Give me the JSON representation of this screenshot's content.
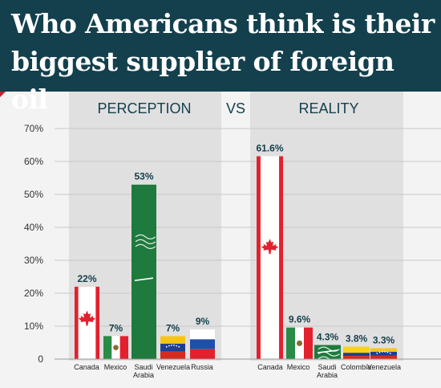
{
  "title": "Who Americans think is their biggest supplier of foreign oil",
  "chart_data": {
    "type": "bar",
    "ylim": [
      0,
      70
    ],
    "yticks": [
      0,
      10,
      20,
      30,
      40,
      50,
      60,
      70
    ],
    "ytick_labels": [
      "0",
      "10%",
      "20%",
      "30%",
      "40%",
      "50%",
      "60%",
      "70%"
    ],
    "grid": true,
    "vs_label": "VS",
    "panels": [
      {
        "name": "PERCEPTION",
        "categories": [
          "Canada",
          "Mexico",
          "Saudi Arabia",
          "Venezuela",
          "Russia"
        ],
        "values": [
          22,
          7,
          53,
          7,
          9
        ],
        "value_labels": [
          "22%",
          "7%",
          "53%",
          "7%",
          "9%"
        ],
        "flags": [
          "canada",
          "mexico",
          "saudi",
          "venezuela",
          "russia"
        ]
      },
      {
        "name": "REALITY",
        "categories": [
          "Canada",
          "Mexico",
          "Saudi Arabia",
          "Colombia",
          "Venezuela"
        ],
        "values": [
          61.6,
          9.6,
          4.3,
          3.8,
          3.3
        ],
        "value_labels": [
          "61.6%",
          "9.6%",
          "4.3%",
          "3.8%",
          "3.3%"
        ],
        "flags": [
          "canada",
          "mexico",
          "saudi",
          "colombia",
          "venezuela"
        ]
      }
    ]
  },
  "colors": {
    "header_bg": "#14404d",
    "accent": "#c8202e",
    "panel_bg": "#e0e0e0",
    "canada_red": "#e3202e",
    "saudi_green": "#1f7a3d",
    "venezuela_yellow": "#f6c514",
    "venezuela_blue": "#1c3f94",
    "venezuela_red": "#d52b1e",
    "mexico_green": "#2a8b47",
    "russia_blue": "#1f4fa8",
    "colombia_yellow": "#f8d21b"
  }
}
